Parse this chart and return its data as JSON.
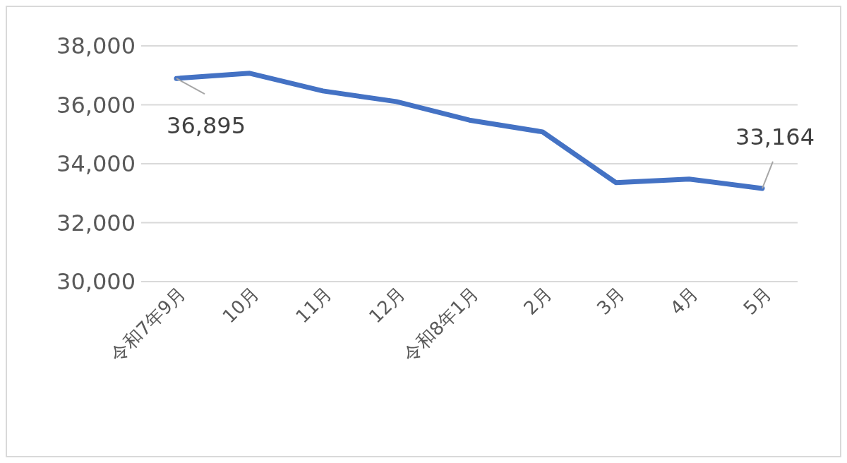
{
  "chart_data": {
    "type": "line",
    "categories": [
      "令和7年9月",
      "10月",
      "11月",
      "12月",
      "令和8年1月",
      "2月",
      "3月",
      "4月",
      "5月"
    ],
    "series": [
      {
        "color": "#4472c4",
        "values": [
          36895,
          37070,
          36470,
          36110,
          35480,
          35080,
          33360,
          33480,
          33164
        ],
        "value_labels": [
          "36,895",
          null,
          null,
          null,
          null,
          null,
          null,
          null,
          "33,164"
        ]
      }
    ],
    "ylim": [
      30000,
      38000
    ],
    "yticks": [
      {
        "value": 30000,
        "label": "30,000"
      },
      {
        "value": 32000,
        "label": "32,000"
      },
      {
        "value": 34000,
        "label": "34,000"
      },
      {
        "value": 36000,
        "label": "36,000"
      },
      {
        "value": 38000,
        "label": "38,000"
      }
    ],
    "grid": "y",
    "legend": false,
    "marker": "none",
    "line_style": "solid"
  }
}
